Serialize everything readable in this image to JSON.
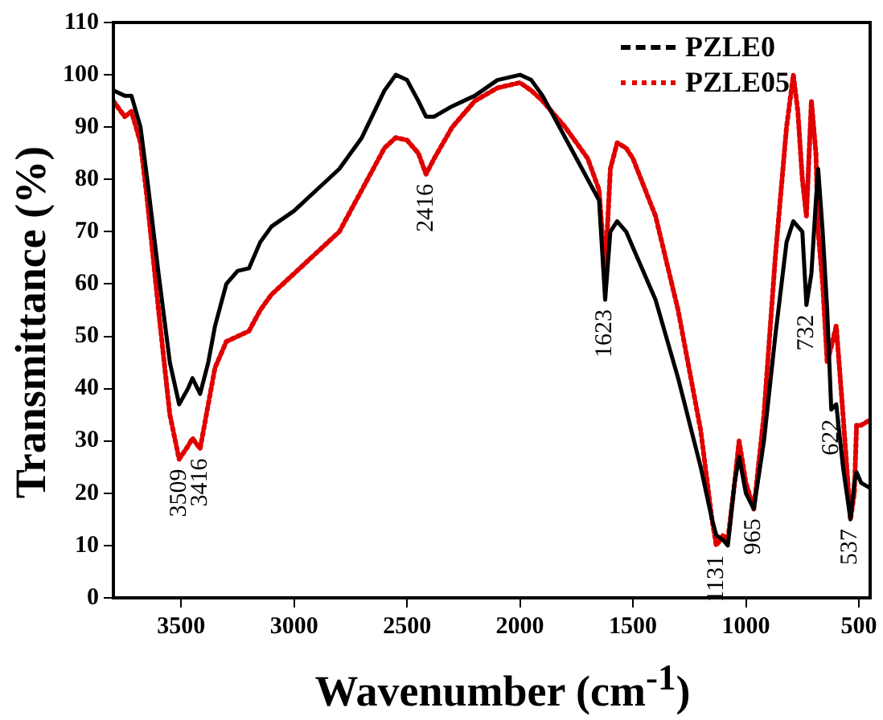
{
  "chart_data": {
    "type": "line",
    "xlabel": "Wavenumber (cm$^{-1}$)",
    "ylabel": "Transmittance (%)",
    "xlim": [
      3800,
      450
    ],
    "xticks": [
      3500,
      3000,
      2500,
      2000,
      1500,
      1000,
      500
    ],
    "ylim": [
      0,
      110
    ],
    "yticks": [
      0,
      10,
      20,
      30,
      40,
      50,
      60,
      70,
      80,
      90,
      100,
      110
    ],
    "grid": false,
    "legend": "top right",
    "marker": "none",
    "x": [
      3800,
      3750,
      3720,
      3680,
      3650,
      3600,
      3550,
      3509,
      3470,
      3450,
      3416,
      3380,
      3350,
      3300,
      3250,
      3200,
      3150,
      3100,
      3000,
      2900,
      2800,
      2700,
      2600,
      2550,
      2500,
      2450,
      2416,
      2380,
      2300,
      2200,
      2100,
      2000,
      1950,
      1900,
      1800,
      1700,
      1650,
      1623,
      1600,
      1570,
      1530,
      1500,
      1400,
      1300,
      1200,
      1150,
      1131,
      1100,
      1080,
      1050,
      1030,
      1000,
      965,
      920,
      870,
      820,
      790,
      770,
      750,
      732,
      710,
      690,
      680,
      660,
      640,
      622,
      600,
      570,
      537,
      520,
      510,
      490,
      450
    ],
    "series": [
      {
        "name": "PZLE0",
        "color": "#000000",
        "line_style": "solid",
        "values": [
          97,
          96,
          96,
          90,
          80,
          62,
          45,
          37,
          40,
          42,
          39,
          45,
          52,
          60,
          62.5,
          63,
          68,
          71,
          74,
          78,
          82,
          88,
          97,
          100,
          99,
          95,
          92,
          92,
          94,
          96,
          99,
          100,
          99,
          96,
          88,
          80,
          76,
          57,
          70,
          72,
          70,
          67,
          57,
          42,
          25,
          15,
          12,
          11,
          10,
          22,
          27,
          20,
          17,
          30,
          50,
          68,
          72,
          71,
          70,
          56,
          62,
          76,
          82,
          70,
          55,
          36,
          37,
          25,
          15,
          22,
          24,
          22,
          21
        ]
      },
      {
        "name": "PZLE05",
        "color": "#e00000",
        "line_style": "dotted",
        "values": [
          95,
          92,
          93,
          87,
          76,
          55,
          35,
          26.5,
          29,
          30.5,
          28.5,
          37,
          44,
          49,
          50,
          51,
          55,
          58,
          62,
          66,
          70,
          78,
          86,
          88,
          87.5,
          85,
          81,
          84,
          90,
          95,
          97.5,
          98.5,
          97,
          95,
          90,
          84,
          78,
          62,
          82,
          87,
          86,
          84,
          73,
          55,
          32,
          15,
          10,
          12,
          11,
          22,
          30,
          22,
          17,
          35,
          65,
          90,
          100,
          93,
          80,
          73,
          95,
          85,
          70,
          60,
          45,
          48,
          52,
          35,
          15,
          20,
          33,
          33,
          34
        ]
      }
    ],
    "annotations": [
      {
        "text": "3509",
        "x": 3509,
        "y": 26.5
      },
      {
        "text": "3416",
        "x": 3416,
        "y": 28.5
      },
      {
        "text": "2416",
        "x": 2416,
        "y": 81
      },
      {
        "text": "1623",
        "x": 1623,
        "y": 57
      },
      {
        "text": "1131",
        "x": 1131,
        "y": 10
      },
      {
        "text": "965",
        "x": 965,
        "y": 17
      },
      {
        "text": "732",
        "x": 732,
        "y": 56
      },
      {
        "text": "622",
        "x": 622,
        "y": 36
      },
      {
        "text": "537",
        "x": 537,
        "y": 15
      }
    ]
  }
}
